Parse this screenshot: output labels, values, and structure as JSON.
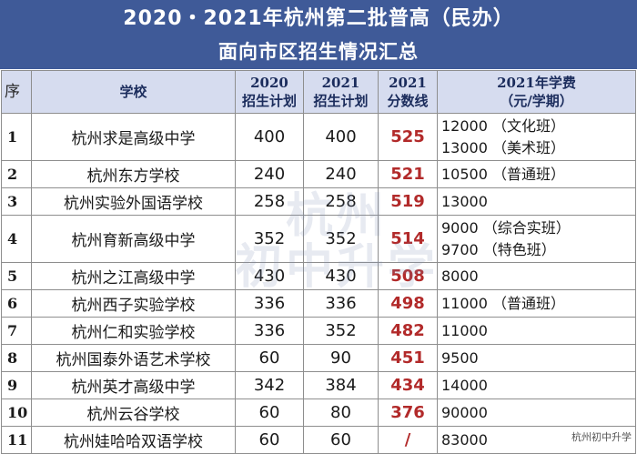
{
  "title": {
    "line1": "2020・2021年杭州第二批普高（民办）",
    "line2": "面向市区招生情况汇总"
  },
  "headers": {
    "seq": "序",
    "school": "学校",
    "plan2020_l1": "2020",
    "plan2020_l2": "招生计划",
    "plan2021_l1": "2021",
    "plan2021_l2": "招生计划",
    "score2021_l1": "2021",
    "score2021_l2": "分数线",
    "fee_l1": "2021年学费",
    "fee_l2": "（元/学期）"
  },
  "rows": [
    {
      "seq": "1",
      "school": "杭州求是高级中学",
      "plan2020": "400",
      "plan2021": "400",
      "score": "525",
      "fee": [
        "12000 （文化班）",
        "13000 （美术班）"
      ]
    },
    {
      "seq": "2",
      "school": "杭州东方学校",
      "plan2020": "240",
      "plan2021": "240",
      "score": "521",
      "fee": [
        "10500 （普通班）"
      ]
    },
    {
      "seq": "3",
      "school": "杭州实验外国语学校",
      "plan2020": "258",
      "plan2021": "258",
      "score": "519",
      "fee": [
        "13000"
      ]
    },
    {
      "seq": "4",
      "school": "杭州育新高级中学",
      "plan2020": "352",
      "plan2021": "352",
      "score": "514",
      "fee": [
        "9000 （综合实班）",
        "9700 （特色班）"
      ]
    },
    {
      "seq": "5",
      "school": "杭州之江高级中学",
      "plan2020": "430",
      "plan2021": "430",
      "score": "508",
      "fee": [
        "8000"
      ]
    },
    {
      "seq": "6",
      "school": "杭州西子实验学校",
      "plan2020": "336",
      "plan2021": "336",
      "score": "498",
      "fee": [
        "11000 （普通班）"
      ]
    },
    {
      "seq": "7",
      "school": "杭州仁和实验学校",
      "plan2020": "336",
      "plan2021": "352",
      "score": "482",
      "fee": [
        "11000"
      ]
    },
    {
      "seq": "8",
      "school": "杭州国泰外语艺术学校",
      "plan2020": "60",
      "plan2021": "90",
      "score": "451",
      "fee": [
        "9500"
      ]
    },
    {
      "seq": "9",
      "school": "杭州英才高级中学",
      "plan2020": "342",
      "plan2021": "384",
      "score": "434",
      "fee": [
        "14000"
      ]
    },
    {
      "seq": "10",
      "school": "杭州云谷学校",
      "plan2020": "60",
      "plan2021": "80",
      "score": "376",
      "fee": [
        "90000"
      ]
    },
    {
      "seq": "11",
      "school": "杭州娃哈哈双语学校",
      "plan2020": "60",
      "plan2021": "60",
      "score": "/",
      "fee": [
        "83000"
      ]
    }
  ],
  "watermark": {
    "line1": "杭州",
    "line2": "初中升学"
  },
  "source_tag": "杭州初中升学",
  "colors": {
    "title_bg": "#3f5a98",
    "header_bg": "#d6dcef",
    "score": "#b22a2a"
  }
}
